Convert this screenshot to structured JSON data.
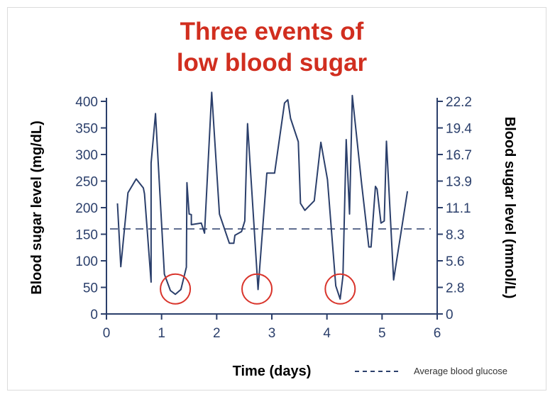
{
  "chart_data": {
    "type": "line",
    "title": [
      "Three events of",
      "low blood sugar"
    ],
    "xlabel": "Time (days)",
    "ylabel": "Blood sugar level (mg/dL)",
    "ylabel_right": "Blood sugar level (mmol/L)",
    "xlim": [
      0,
      6
    ],
    "ylim": [
      0,
      400
    ],
    "x_ticks": [
      "0",
      "1",
      "2",
      "3",
      "4",
      "5",
      "6"
    ],
    "y_ticks": [
      "0",
      "50",
      "100",
      "150",
      "200",
      "250",
      "300",
      "350",
      "400"
    ],
    "y_ticks_right": [
      "0",
      "2.8",
      "5.6",
      "8.3",
      "11.1",
      "13.9",
      "16.7",
      "19.4",
      "22.2"
    ],
    "grid": false,
    "legend_position": "bottom-right",
    "average": {
      "name": "Average blood glucose",
      "value": 160
    },
    "colors": {
      "line": "#2b3f6b",
      "title": "#d12e1f",
      "highlight": "#d9342b",
      "axis": "#2b3f6b"
    },
    "series": [
      {
        "x": [
          0.2,
          0.26,
          0.39,
          0.54,
          0.67,
          0.69,
          0.81,
          0.81,
          0.89,
          1.05,
          1.16,
          1.25,
          1.35,
          1.45,
          1.46,
          1.5,
          1.54,
          1.54,
          1.72,
          1.78,
          1.91,
          2.05,
          2.23,
          2.31,
          2.33,
          2.45,
          2.51,
          2.56,
          2.75,
          2.91,
          3.05,
          3.23,
          3.29,
          3.34,
          3.48,
          3.52,
          3.6,
          3.77,
          3.89,
          4.01,
          4.16,
          4.24,
          4.29,
          4.35,
          4.41,
          4.46,
          4.63,
          4.76,
          4.8,
          4.88,
          4.91,
          4.98,
          5.04,
          5.08,
          5.21,
          5.46
        ],
        "y": [
          208,
          89,
          228,
          254,
          237,
          226,
          60,
          284,
          377,
          75,
          44,
          37,
          46,
          88,
          247,
          188,
          187,
          168,
          171,
          152,
          417,
          188,
          133,
          133,
          148,
          155,
          175,
          358,
          46,
          265,
          265,
          397,
          403,
          368,
          324,
          208,
          195,
          213,
          323,
          253,
          53,
          28,
          71,
          328,
          188,
          411,
          244,
          126,
          126,
          240,
          235,
          171,
          175,
          325,
          64,
          231
        ]
      }
    ],
    "annotations": [
      {
        "type": "circle",
        "x": 1.25,
        "y": 47
      },
      {
        "type": "circle",
        "x": 2.73,
        "y": 47
      },
      {
        "type": "circle",
        "x": 4.24,
        "y": 47
      }
    ]
  }
}
